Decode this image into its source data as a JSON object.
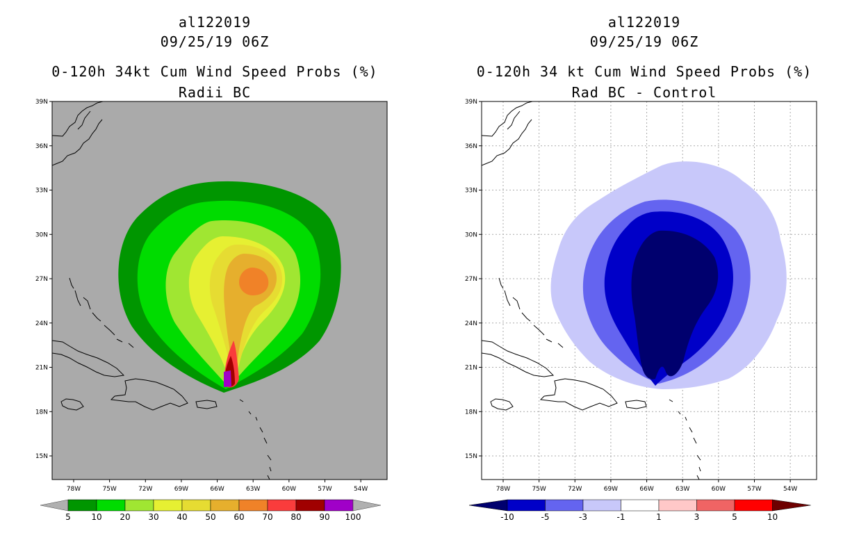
{
  "left_panel": {
    "storm_id": "al122019",
    "datetime": "09/25/19 06Z",
    "title": "0-120h 34kt Cum Wind Speed Probs (%)",
    "subtitle": "Radii BC",
    "background_color": "#aaaaaa",
    "colorbar": {
      "ticks": [
        "5",
        "10",
        "20",
        "30",
        "40",
        "50",
        "60",
        "70",
        "80",
        "90",
        "100"
      ],
      "colors": [
        "#009600",
        "#00dc00",
        "#a0e632",
        "#e6f032",
        "#e6dc32",
        "#e6af2d",
        "#f08228",
        "#fa3c3c",
        "#a00000",
        "#a000c8"
      ],
      "end_color": "#b0b0b0"
    }
  },
  "right_panel": {
    "storm_id": "al122019",
    "datetime": "09/25/19 06Z",
    "title": "0-120h 34 kt Cum Wind Speed Probs (%)",
    "subtitle": "Rad BC - Control",
    "background_color": "#ffffff",
    "colorbar": {
      "ticks": [
        "-10",
        "-5",
        "-3",
        "-1",
        "1",
        "3",
        "5",
        "10"
      ],
      "colors": [
        "#0000c8",
        "#6464f0",
        "#c8c8fa",
        "#ffffff",
        "#ffc8c8",
        "#f06464",
        "#ff0000"
      ],
      "low_end_color": "#00006e",
      "high_end_color": "#6e0000"
    }
  },
  "axes": {
    "lat_labels": [
      "39N",
      "36N",
      "33N",
      "30N",
      "27N",
      "24N",
      "21N",
      "18N",
      "15N"
    ],
    "lat_values": [
      39,
      36,
      33,
      30,
      27,
      24,
      21,
      18,
      15
    ],
    "lon_labels": [
      "78W",
      "75W",
      "72W",
      "69W",
      "66W",
      "63W",
      "60W",
      "57W",
      "54W"
    ],
    "lon_values": [
      -78,
      -75,
      -72,
      -69,
      -66,
      -63,
      -60,
      -57,
      -54
    ],
    "lat_range": [
      13.4,
      39
    ],
    "lon_range": [
      -79.8,
      -51.8
    ]
  }
}
